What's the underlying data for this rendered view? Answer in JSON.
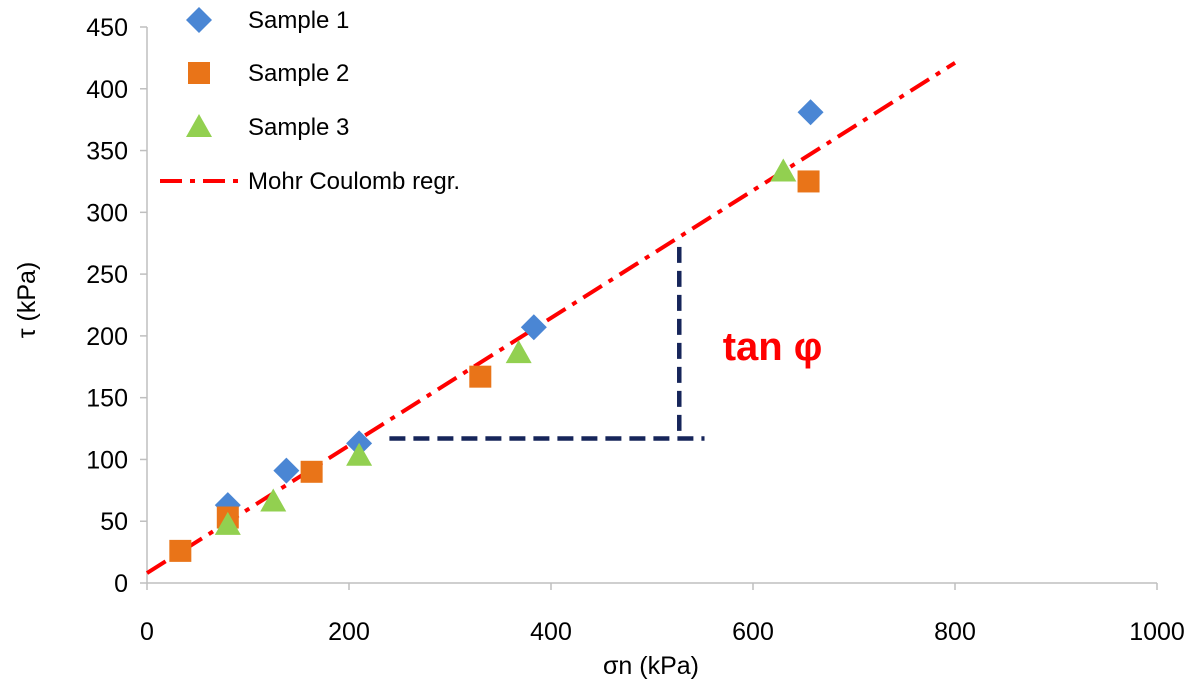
{
  "chart_data": {
    "type": "scatter",
    "title": "",
    "xlabel": "σn (kPa)",
    "ylabel": "τ (kPa)",
    "xlim": [
      0,
      1000
    ],
    "ylim": [
      0,
      450
    ],
    "x_ticks": [
      0,
      200,
      400,
      600,
      800,
      1000
    ],
    "y_ticks": [
      0,
      50,
      100,
      150,
      200,
      250,
      300,
      350,
      400,
      450
    ],
    "grid": false,
    "legend_position": "top-left",
    "series": [
      {
        "name": "Sample 1",
        "marker": "diamond",
        "color": "#4A86D4",
        "x": [
          80,
          138,
          210,
          383,
          657
        ],
        "y": [
          63,
          91,
          113,
          207,
          381
        ]
      },
      {
        "name": "Sample 2",
        "marker": "square",
        "color": "#E97418",
        "x": [
          33,
          80,
          163,
          330,
          655
        ],
        "y": [
          26,
          53,
          90,
          167,
          325
        ]
      },
      {
        "name": "Sample 3",
        "marker": "triangle",
        "color": "#92D050",
        "x": [
          80,
          125,
          210,
          368,
          630
        ],
        "y": [
          47,
          66,
          103,
          186,
          333
        ]
      }
    ],
    "regression": {
      "name": "Mohr Coulomb regr.",
      "color": "#FF0000",
      "x": [
        0,
        800
      ],
      "y": [
        8,
        421
      ]
    },
    "annotations": {
      "slope_label": "tan φ",
      "slope_label_color": "#FF0000",
      "triangle_color": "#16255A",
      "horizontal_leg": {
        "x": [
          240,
          552
        ],
        "y": 117
      },
      "vertical_leg": {
        "x": 527,
        "y": [
          117,
          272
        ]
      },
      "label_anchor": {
        "x": 570,
        "y": 192
      }
    }
  }
}
